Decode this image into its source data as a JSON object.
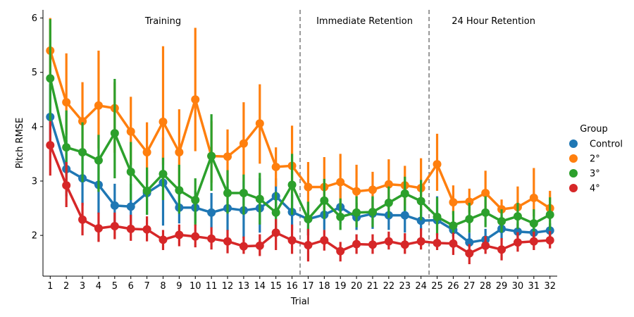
{
  "chart_data": {
    "type": "line",
    "xlabel": "Trial",
    "ylabel": "Pitch RMSE",
    "x": [
      1,
      2,
      3,
      4,
      5,
      6,
      7,
      8,
      9,
      10,
      11,
      12,
      13,
      14,
      15,
      16,
      17,
      18,
      19,
      20,
      21,
      22,
      23,
      24,
      25,
      26,
      27,
      28,
      29,
      30,
      31,
      32
    ],
    "ylim": [
      1.25,
      6.15
    ],
    "yticks": [
      2,
      3,
      4,
      5,
      6
    ],
    "phase_dividers": [
      16.5,
      24.5
    ],
    "phases": [
      {
        "label": "Training",
        "x_center": 8.0
      },
      {
        "label": "Immediate Retention",
        "x_center": 20.5
      },
      {
        "label": "24 Hour Retention",
        "x_center": 28.5
      }
    ],
    "legend": {
      "title": "Group",
      "position": "right"
    },
    "series": [
      {
        "name": "Control",
        "color": "#1f77b4",
        "values": [
          4.18,
          3.22,
          3.05,
          2.93,
          2.55,
          2.53,
          2.78,
          2.97,
          2.51,
          2.51,
          2.42,
          2.5,
          2.46,
          2.5,
          2.72,
          2.43,
          2.3,
          2.38,
          2.52,
          2.33,
          2.4,
          2.37,
          2.37,
          2.27,
          2.28,
          2.1,
          1.87,
          1.92,
          2.12,
          2.07,
          2.05,
          2.09
        ],
        "low": [
          3.65,
          2.72,
          2.55,
          2.4,
          2.18,
          2.2,
          2.38,
          2.18,
          2.22,
          2.22,
          2.14,
          2.08,
          1.95,
          2.05,
          2.4,
          2.1,
          2.0,
          2.1,
          2.22,
          2.1,
          2.12,
          2.1,
          2.05,
          2.1,
          2.1,
          1.98,
          1.8,
          1.8,
          1.92,
          1.96,
          1.95,
          1.97
        ],
        "high": [
          4.78,
          3.75,
          3.55,
          3.45,
          2.95,
          2.95,
          3.2,
          3.8,
          2.82,
          2.82,
          2.78,
          2.9,
          3.0,
          3.05,
          3.05,
          2.75,
          2.62,
          2.68,
          2.88,
          2.6,
          2.7,
          2.68,
          2.72,
          2.48,
          2.72,
          2.25,
          2.05,
          2.12,
          2.35,
          2.22,
          2.18,
          2.22
        ]
      },
      {
        "name": "2°",
        "color": "#ff7f0e",
        "values": [
          5.4,
          4.45,
          4.1,
          4.39,
          4.34,
          3.91,
          3.53,
          4.09,
          3.53,
          4.5,
          3.46,
          3.45,
          3.69,
          4.06,
          3.26,
          3.28,
          2.89,
          2.89,
          2.98,
          2.81,
          2.84,
          2.94,
          2.92,
          2.87,
          3.31,
          2.61,
          2.62,
          2.78,
          2.48,
          2.52,
          2.69,
          2.5
        ],
        "low": [
          4.82,
          3.85,
          3.5,
          3.6,
          3.52,
          3.3,
          2.95,
          3.3,
          2.95,
          3.55,
          2.97,
          2.97,
          3.0,
          3.32,
          2.9,
          2.78,
          2.45,
          2.48,
          2.55,
          2.38,
          2.5,
          2.5,
          2.55,
          2.45,
          2.82,
          2.38,
          2.42,
          2.45,
          2.3,
          2.33,
          2.35,
          2.3
        ],
        "high": [
          6.0,
          5.35,
          4.82,
          5.4,
          4.82,
          4.55,
          4.08,
          5.48,
          4.32,
          5.82,
          4.1,
          3.95,
          4.45,
          4.78,
          3.62,
          4.02,
          3.35,
          3.44,
          3.5,
          3.3,
          3.17,
          3.4,
          3.28,
          3.42,
          3.87,
          2.92,
          2.86,
          3.19,
          2.66,
          2.9,
          3.24,
          2.82
        ]
      },
      {
        "name": "3°",
        "color": "#2ca02c",
        "values": [
          4.89,
          3.62,
          3.53,
          3.38,
          3.88,
          3.17,
          2.82,
          3.13,
          2.83,
          2.65,
          3.46,
          2.78,
          2.78,
          2.67,
          2.42,
          2.93,
          2.3,
          2.64,
          2.34,
          2.42,
          2.43,
          2.6,
          2.77,
          2.63,
          2.34,
          2.18,
          2.3,
          2.42,
          2.26,
          2.35,
          2.22,
          2.38
        ],
        "low": [
          4.1,
          3.0,
          2.98,
          2.8,
          3.05,
          2.65,
          2.38,
          2.65,
          2.4,
          2.18,
          2.82,
          2.4,
          2.38,
          2.2,
          2.1,
          2.38,
          2.0,
          2.3,
          2.1,
          2.15,
          2.15,
          2.32,
          2.45,
          2.28,
          2.0,
          1.98,
          2.05,
          2.15,
          2.05,
          2.12,
          2.0,
          2.1
        ],
        "high": [
          5.98,
          4.3,
          4.08,
          3.85,
          4.88,
          3.72,
          3.25,
          3.43,
          3.3,
          3.05,
          4.23,
          3.2,
          3.12,
          3.15,
          2.8,
          3.5,
          2.62,
          3.04,
          2.68,
          2.72,
          2.72,
          2.9,
          3.08,
          3.02,
          2.7,
          2.45,
          2.6,
          2.72,
          2.48,
          2.6,
          2.48,
          2.7
        ]
      },
      {
        "name": "4°",
        "color": "#d62728",
        "values": [
          3.66,
          2.92,
          2.29,
          2.13,
          2.17,
          2.12,
          2.11,
          1.92,
          2.01,
          1.98,
          1.94,
          1.89,
          1.8,
          1.81,
          2.05,
          1.91,
          1.82,
          1.91,
          1.71,
          1.84,
          1.83,
          1.89,
          1.83,
          1.89,
          1.86,
          1.85,
          1.67,
          1.81,
          1.74,
          1.87,
          1.89,
          1.91
        ],
        "low": [
          3.1,
          2.52,
          2.0,
          1.88,
          1.93,
          1.9,
          1.89,
          1.73,
          1.8,
          1.78,
          1.74,
          1.67,
          1.66,
          1.62,
          1.73,
          1.66,
          1.52,
          1.72,
          1.52,
          1.66,
          1.66,
          1.74,
          1.66,
          1.74,
          1.73,
          1.64,
          1.47,
          1.66,
          1.54,
          1.7,
          1.73,
          1.76
        ],
        "high": [
          4.1,
          3.35,
          2.6,
          2.42,
          2.42,
          2.38,
          2.35,
          2.1,
          2.2,
          2.2,
          2.15,
          2.1,
          1.98,
          2.02,
          2.3,
          2.2,
          2.12,
          2.1,
          1.88,
          2.02,
          2.02,
          2.07,
          2.04,
          2.13,
          2.04,
          2.05,
          1.84,
          1.99,
          1.95,
          2.06,
          2.07,
          2.08
        ]
      }
    ]
  }
}
